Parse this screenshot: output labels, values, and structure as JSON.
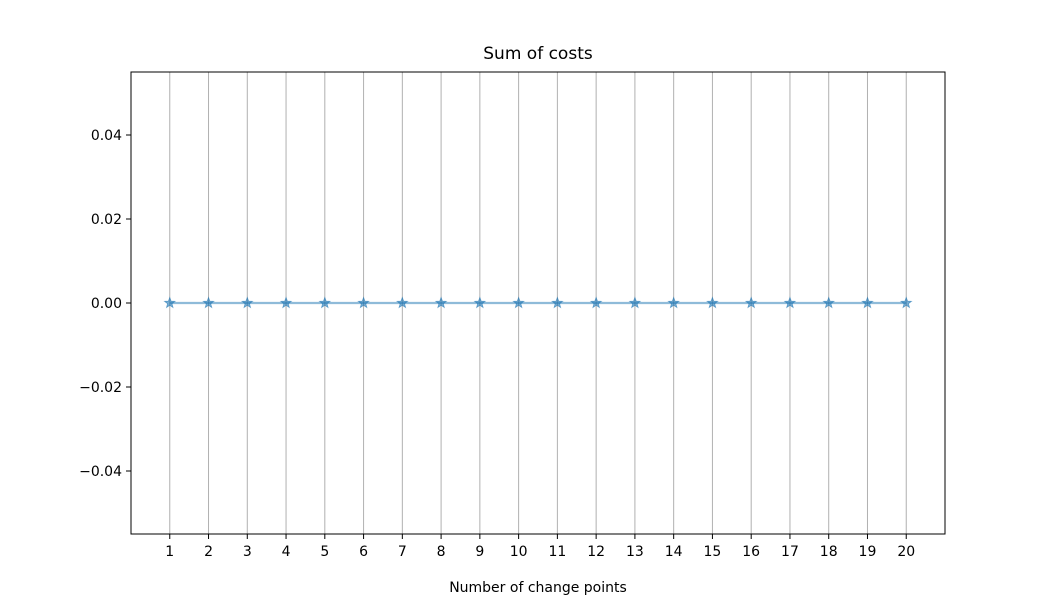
{
  "chart_data": {
    "type": "line",
    "title": "Sum of costs",
    "xlabel": "Number of change points",
    "ylabel": "",
    "x": [
      1,
      2,
      3,
      4,
      5,
      6,
      7,
      8,
      9,
      10,
      11,
      12,
      13,
      14,
      15,
      16,
      17,
      18,
      19,
      20
    ],
    "series": [
      {
        "values": [
          0,
          0,
          0,
          0,
          0,
          0,
          0,
          0,
          0,
          0,
          0,
          0,
          0,
          0,
          0,
          0,
          0,
          0,
          0,
          0
        ],
        "color": "#1f77b4",
        "marker": "star"
      }
    ],
    "ylim": [
      -0.055,
      0.055
    ],
    "xlim": [
      0,
      21
    ],
    "yticks": [
      -0.04,
      -0.02,
      0.0,
      0.02,
      0.04
    ],
    "ytick_labels": [
      "−0.04",
      "−0.02",
      "0.00",
      "0.02",
      "0.04"
    ],
    "xticks": [
      1,
      2,
      3,
      4,
      5,
      6,
      7,
      8,
      9,
      10,
      11,
      12,
      13,
      14,
      15,
      16,
      17,
      18,
      19,
      20
    ],
    "xtick_labels": [
      "1",
      "2",
      "3",
      "4",
      "5",
      "6",
      "7",
      "8",
      "9",
      "10",
      "11",
      "12",
      "13",
      "14",
      "15",
      "16",
      "17",
      "18",
      "19",
      "20"
    ],
    "grid": "x"
  }
}
